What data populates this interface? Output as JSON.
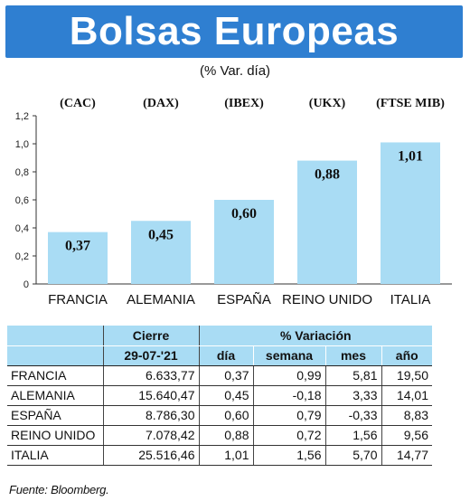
{
  "title": "Bolsas Europeas",
  "subtitle": "(% Var. día)",
  "chart_data": {
    "type": "bar",
    "indices": [
      "(CAC)",
      "(DAX)",
      "(IBEX)",
      "(UKX)",
      "(FTSE MIB)"
    ],
    "categories": [
      "FRANCIA",
      "ALEMANIA",
      "ESPAÑA",
      "REINO UNIDO",
      "ITALIA"
    ],
    "values": [
      0.37,
      0.45,
      0.6,
      0.88,
      1.01
    ],
    "value_labels": [
      "0,37",
      "0,45",
      "0,60",
      "0,88",
      "1,01"
    ],
    "yticks": [
      "0",
      "0,2",
      "0,4",
      "0,6",
      "0,8",
      "1,0",
      "1,2"
    ],
    "ytick_values": [
      0,
      0.2,
      0.4,
      0.6,
      0.8,
      1.0,
      1.2
    ],
    "ylim": [
      0,
      1.2
    ],
    "bar_color": "#a9dcf4",
    "title": "",
    "xlabel": "",
    "ylabel": ""
  },
  "table": {
    "header_top": [
      "",
      "Cierre",
      "% Variación"
    ],
    "header_bottom": [
      "",
      "29-07-'21",
      "día",
      "semana",
      "mes",
      "año"
    ],
    "rows": [
      [
        "FRANCIA",
        "6.633,77",
        "0,37",
        "0,99",
        "5,81",
        "19,50"
      ],
      [
        "ALEMANIA",
        "15.640,47",
        "0,45",
        "-0,18",
        "3,33",
        "14,01"
      ],
      [
        "ESPAÑA",
        "8.786,30",
        "0,60",
        "0,79",
        "-0,33",
        "8,83"
      ],
      [
        "REINO UNIDO",
        "7.078,42",
        "0,88",
        "0,72",
        "1,56",
        "9,56"
      ],
      [
        "ITALIA",
        "25.516,46",
        "1,01",
        "1,56",
        "5,70",
        "14,77"
      ]
    ]
  },
  "source": "Fuente: Bloomberg.",
  "colors": {
    "banner": "#2f7fd1",
    "bar": "#a9dcf4",
    "header": "#a9dcf4"
  }
}
